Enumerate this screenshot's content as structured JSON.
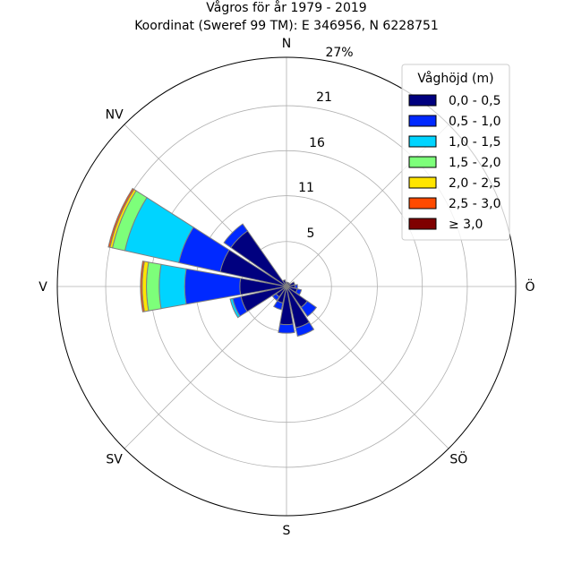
{
  "chart_data": {
    "type": "windrose",
    "title": "Vågros för år 1979 - 2019",
    "subtitle": "Koordinat (Sweref 99 TM): E 346956, N 6228751",
    "directions": [
      "N",
      "Ö",
      "S",
      "V",
      "NV",
      "SÖ",
      "SV"
    ],
    "direction_labels": {
      "N": "N",
      "NE": "",
      "E": "Ö",
      "SE": "SÖ",
      "S": "S",
      "SW": "SV",
      "W": "V",
      "NW": "NV"
    },
    "ring_labels": [
      "5",
      "11",
      "16",
      "21",
      "27%"
    ],
    "rmax": 27,
    "legend_title": "Våghöjd (m)",
    "legend_position": "top-right",
    "legend_entries": [
      "0,0 - 0,5",
      "0,5 - 1,0",
      "1,0 - 1,5",
      "1,5 - 2,0",
      "2,0 - 2,5",
      "2,5 - 3,0",
      "≥ 3,0"
    ],
    "colors": [
      "#00007f",
      "#0029ff",
      "#00d4ff",
      "#7dff7a",
      "#ffe500",
      "#ff4a00",
      "#7f0000"
    ],
    "sectors": [
      {
        "direction_deg": 0,
        "cumulative": [
          0.5
        ]
      },
      {
        "direction_deg": 22.5,
        "cumulative": [
          0.5
        ]
      },
      {
        "direction_deg": 45,
        "cumulative": [
          0.5
        ]
      },
      {
        "direction_deg": 67.5,
        "cumulative": [
          1.0
        ]
      },
      {
        "direction_deg": 90,
        "cumulative": [
          1.0,
          1.3
        ]
      },
      {
        "direction_deg": 112.5,
        "cumulative": [
          1.3,
          1.8
        ]
      },
      {
        "direction_deg": 135,
        "cumulative": [
          3.0,
          4.3
        ]
      },
      {
        "direction_deg": 157.5,
        "cumulative": [
          5.0,
          6.0
        ]
      },
      {
        "direction_deg": 180,
        "cumulative": [
          4.5,
          5.5
        ]
      },
      {
        "direction_deg": 202.5,
        "cumulative": [
          2.0,
          2.8
        ]
      },
      {
        "direction_deg": 225,
        "cumulative": [
          1.5,
          2.0
        ]
      },
      {
        "direction_deg": 247.5,
        "cumulative": [
          5.5,
          6.5,
          6.8
        ]
      },
      {
        "direction_deg": 270,
        "cumulative": [
          5.5,
          12.0,
          15.0,
          16.5,
          17.0,
          17.2
        ]
      },
      {
        "direction_deg": 292.5,
        "cumulative": [
          8.0,
          13.0,
          19.5,
          21.0,
          21.3,
          21.5
        ]
      },
      {
        "direction_deg": 315,
        "cumulative": [
          8.0,
          9.0
        ]
      },
      {
        "direction_deg": 337.5,
        "cumulative": [
          0.8
        ]
      }
    ]
  }
}
